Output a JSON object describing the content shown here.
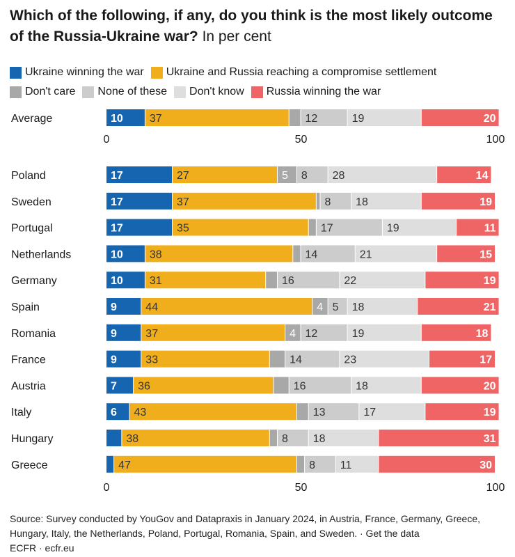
{
  "title": "Which of the following, if any, do you think is the most likely outcome of the Russia-Ukraine war?",
  "subtitle": "In per cent",
  "source": "Source: Survey conducted by YouGov and Datapraxis in January 2024, in Austria, France, Germany, Greece, Hungary, Italy, the Netherlands, Poland, Portugal, Romania, Spain, and Sweden. · Get the data",
  "credit": "ECFR · ecfr.eu",
  "chart_data": {
    "type": "bar",
    "orientation": "horizontal",
    "stacked": true,
    "xlim": [
      0,
      100
    ],
    "xticks": [
      "0",
      "50",
      "100"
    ],
    "legend_position": "top",
    "grid": false,
    "series": [
      {
        "name": "Ukraine winning the war",
        "color": "#1565b0",
        "label_color": "#ffffff"
      },
      {
        "name": "Ukraine and Russia reaching a compromise settlement",
        "color": "#f0ad1c",
        "label_color": "#333333"
      },
      {
        "name": "Don't care",
        "color": "#a8a8a8",
        "label_color": "#ffffff"
      },
      {
        "name": "None of these",
        "color": "#cccccc",
        "label_color": "#333333"
      },
      {
        "name": "Don't know",
        "color": "#dedede",
        "label_color": "#333333"
      },
      {
        "name": "Russia winning the war",
        "color": "#ef6464",
        "label_color": "#ffffff"
      }
    ],
    "average": {
      "category": "Average",
      "values": [
        10,
        37,
        3,
        12,
        19,
        20
      ],
      "labels": [
        "10",
        "37",
        "",
        "12",
        "19",
        "20"
      ]
    },
    "categories": [
      "Poland",
      "Sweden",
      "Portugal",
      "Netherlands",
      "Germany",
      "Spain",
      "Romania",
      "France",
      "Austria",
      "Italy",
      "Hungary",
      "Greece"
    ],
    "rows": [
      {
        "values": [
          17,
          27,
          5,
          8,
          28,
          14
        ],
        "labels": [
          "17",
          "27",
          "5",
          "8",
          "28",
          "14"
        ]
      },
      {
        "values": [
          17,
          37,
          1,
          8,
          18,
          19
        ],
        "labels": [
          "17",
          "37",
          "",
          "8",
          "18",
          "19"
        ]
      },
      {
        "values": [
          17,
          35,
          2,
          17,
          19,
          11
        ],
        "labels": [
          "17",
          "35",
          "",
          "17",
          "19",
          "11"
        ]
      },
      {
        "values": [
          10,
          38,
          2,
          14,
          21,
          15
        ],
        "labels": [
          "10",
          "38",
          "",
          "14",
          "21",
          "15"
        ]
      },
      {
        "values": [
          10,
          31,
          3,
          16,
          22,
          19
        ],
        "labels": [
          "10",
          "31",
          "",
          "16",
          "22",
          "19"
        ]
      },
      {
        "values": [
          9,
          44,
          4,
          5,
          18,
          21
        ],
        "labels": [
          "9",
          "44",
          "4",
          "5",
          "18",
          "21"
        ]
      },
      {
        "values": [
          9,
          37,
          4,
          12,
          19,
          18
        ],
        "labels": [
          "9",
          "37",
          "4",
          "12",
          "19",
          "18"
        ]
      },
      {
        "values": [
          9,
          33,
          4,
          14,
          23,
          17
        ],
        "labels": [
          "9",
          "33",
          "",
          "14",
          "23",
          "17"
        ]
      },
      {
        "values": [
          7,
          36,
          4,
          16,
          18,
          20
        ],
        "labels": [
          "7",
          "36",
          "",
          "16",
          "18",
          "20"
        ]
      },
      {
        "values": [
          6,
          43,
          3,
          13,
          17,
          19
        ],
        "labels": [
          "6",
          "43",
          "",
          "13",
          "17",
          "19"
        ]
      },
      {
        "values": [
          4,
          38,
          2,
          8,
          18,
          31
        ],
        "labels": [
          "",
          "38",
          "",
          "8",
          "18",
          "31"
        ]
      },
      {
        "values": [
          2,
          47,
          2,
          8,
          11,
          30
        ],
        "labels": [
          "",
          "47",
          "",
          "8",
          "11",
          "30"
        ]
      }
    ]
  }
}
